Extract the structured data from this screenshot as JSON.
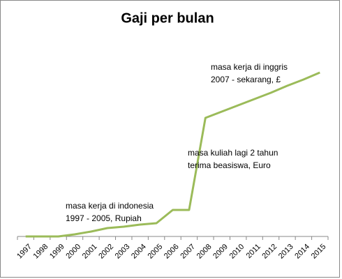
{
  "chart_data": {
    "type": "line",
    "title": "Gaji per bulan",
    "categories": [
      "1997",
      "1998",
      "1999",
      "2000",
      "2001",
      "2002",
      "2003",
      "2004",
      "2005",
      "2006",
      "2007",
      "2008",
      "2009",
      "2010",
      "2011",
      "2012",
      "2013",
      "2014",
      "2015"
    ],
    "values": [
      0,
      0,
      0,
      3,
      7,
      12,
      14,
      17,
      19,
      38,
      38,
      170,
      179,
      188,
      197,
      206,
      216,
      225,
      235
    ],
    "color": "#9bbb59",
    "ylim": [
      0,
      270
    ],
    "annotations": [
      {
        "lines": [
          "masa kerja di indonesia",
          "1997 - 2005,  Rupiah"
        ]
      },
      {
        "lines": [
          "masa kuliah lagi 2 tahun",
          "terima beasiswa, Euro"
        ]
      },
      {
        "lines": [
          "masa kerja di inggris",
          "2007 - sekarang, £"
        ]
      }
    ]
  }
}
